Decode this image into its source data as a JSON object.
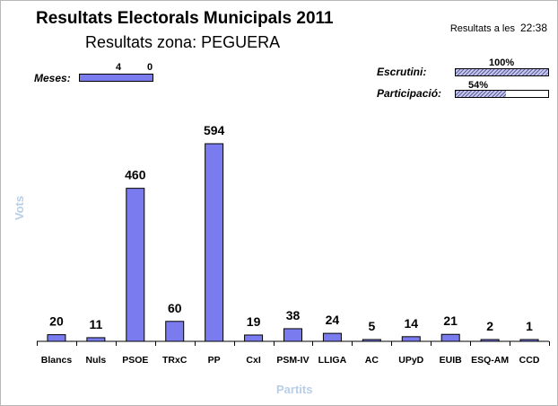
{
  "header": {
    "title": "Resultats Electorals Municipals 2011",
    "subtitle": "Resultats zona: PEGUERA",
    "updated_label": "Resultats a les",
    "updated_time": "22:38"
  },
  "stats": {
    "meses": {
      "label": "Meses:",
      "left_value": "4",
      "right_value": "0",
      "fill_fraction": 1.0
    },
    "escrutini": {
      "label": "Escrutini:",
      "value": "100%",
      "fill_fraction": 1.0
    },
    "participacio": {
      "label": "Participació:",
      "value": "54%",
      "fill_fraction": 0.54
    }
  },
  "colors": {
    "bar_fill": "#7b7bf0",
    "axis_title": "#b8cee6"
  },
  "chart_data": {
    "type": "bar",
    "xlabel": "Partits",
    "ylabel": "Vots",
    "categories": [
      "Blancs",
      "Nuls",
      "PSOE",
      "TRxC",
      "PP",
      "CxI",
      "PSM-IV",
      "LLIGA",
      "AC",
      "UPyD",
      "EUIB",
      "ESQ-AM",
      "CCD"
    ],
    "values": [
      20,
      11,
      460,
      60,
      594,
      19,
      38,
      24,
      5,
      14,
      21,
      2,
      1
    ],
    "ylim": [
      0,
      594
    ],
    "grid": false,
    "legend": "none"
  }
}
